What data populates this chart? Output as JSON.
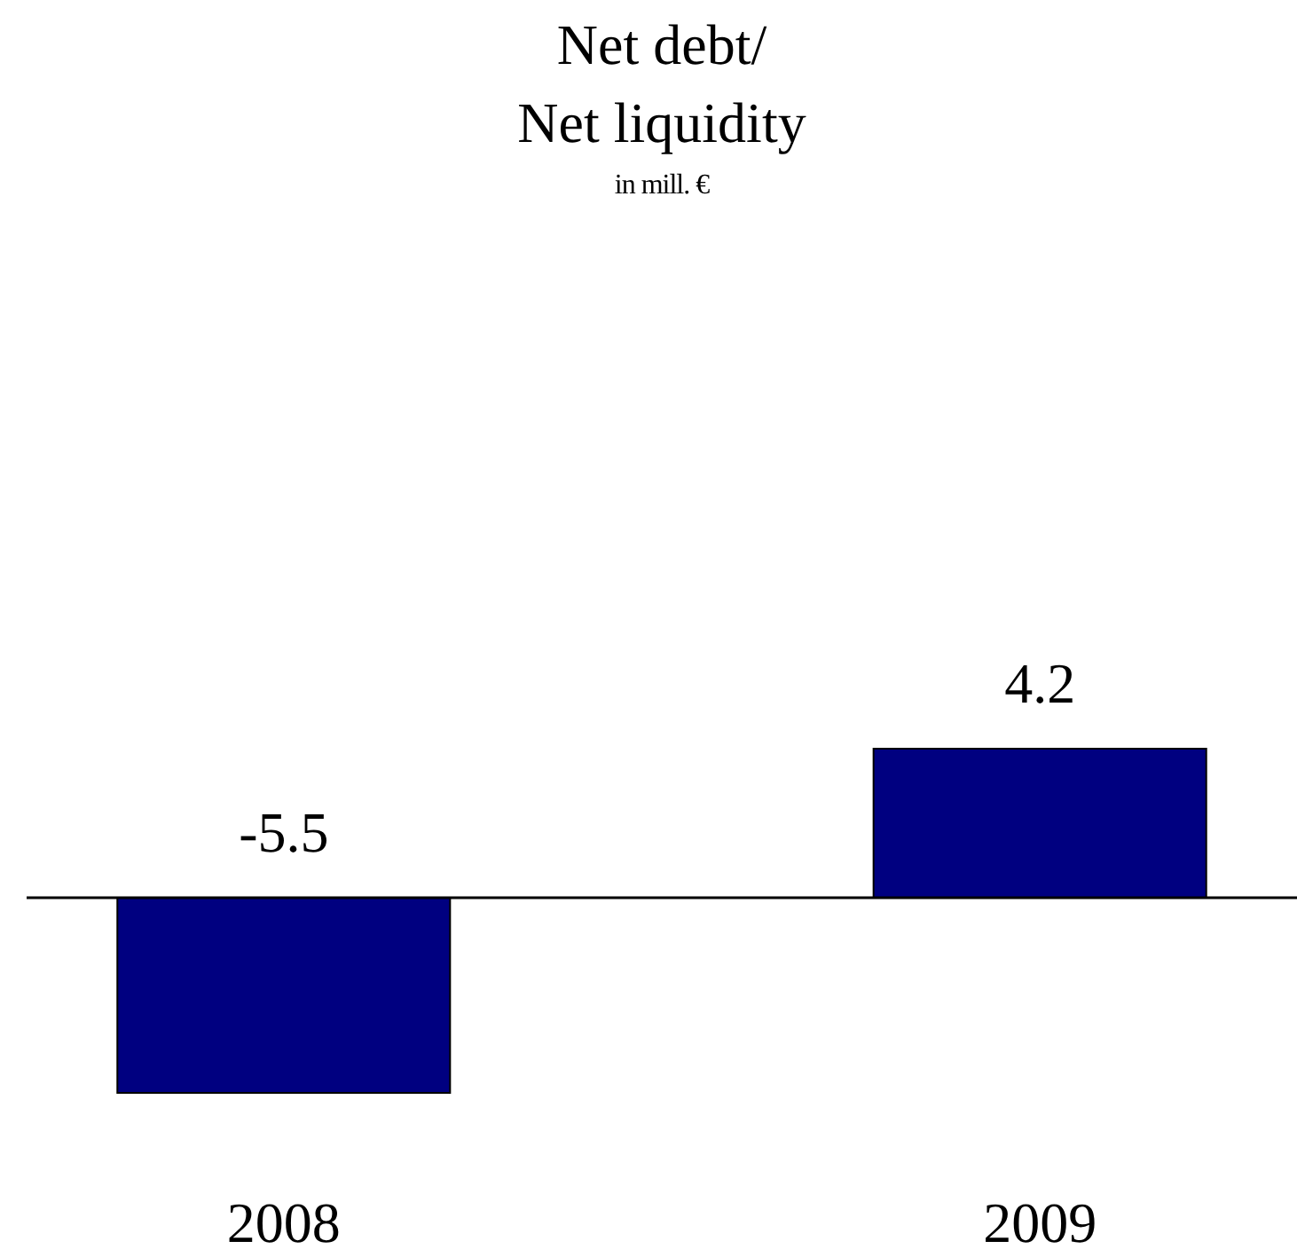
{
  "chart_data": {
    "type": "bar",
    "title": "Net debt/\nNet liquidity",
    "subtitle": "in mill. €",
    "categories": [
      "2008",
      "2009"
    ],
    "values": [
      -5.5,
      4.2
    ],
    "color": "#000080",
    "data_labels": true
  }
}
